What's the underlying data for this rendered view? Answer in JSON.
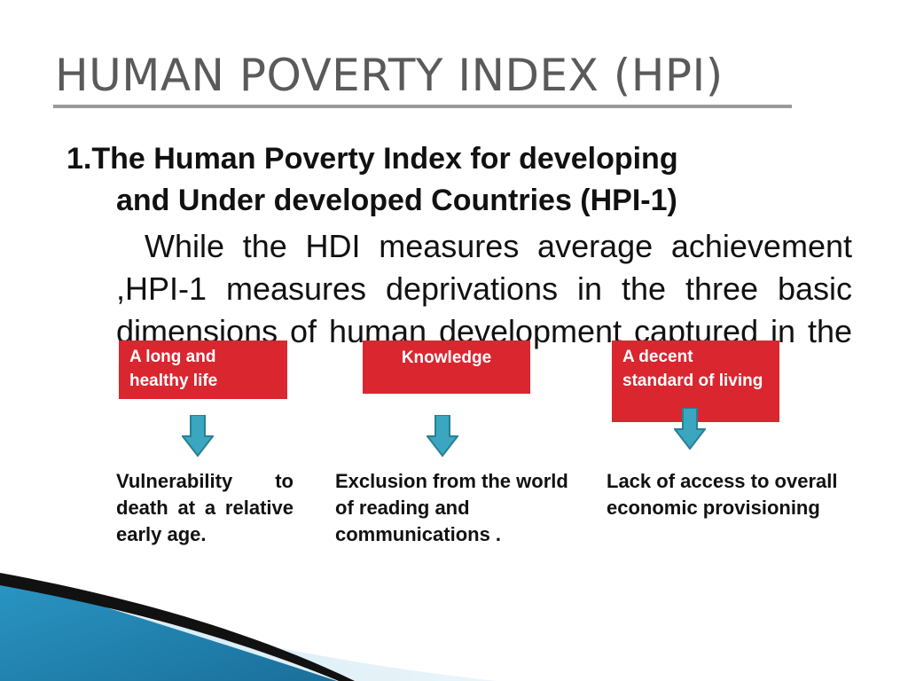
{
  "slide": {
    "title": "HUMAN POVERTY INDEX (HPI)",
    "heading": {
      "number": "1.",
      "line1": "The Human Poverty Index for developing",
      "line2": "and Under developed Countries (HPI-1)"
    },
    "body": "While the HDI measures average achievement ,HPI-1 measures deprivations in the three basic dimensions of human development captured in the HDI",
    "dimensions": [
      {
        "label": "A long and healthy life",
        "description": "Vulnerability to death at a relative early age."
      },
      {
        "label": "Knowledge",
        "description": "Exclusion from the world of reading and communications ."
      },
      {
        "label": "A decent standard of living",
        "description": "Lack of access to overall economic provisioning"
      }
    ]
  },
  "colors": {
    "box_red": "#d9262f",
    "arrow_teal": "#3aa6bf",
    "title_gray": "#5a5a5a",
    "decor_blue": "#1e86b4"
  }
}
